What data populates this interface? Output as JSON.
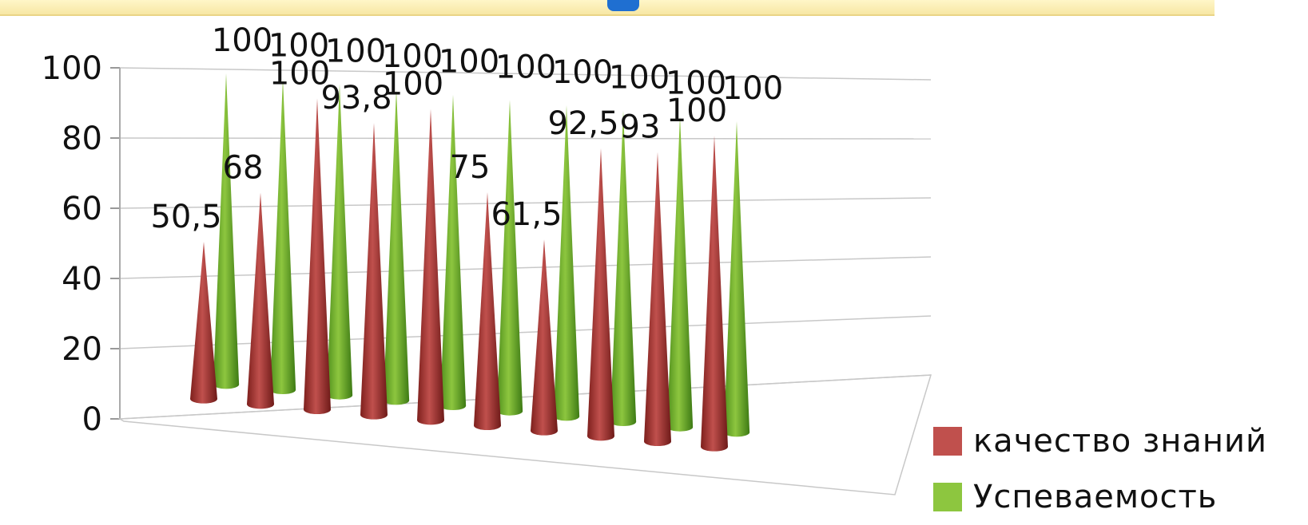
{
  "colors": {
    "series1": "#c0504d",
    "series2": "#8dc63f"
  },
  "chart_data": {
    "type": "bar",
    "ylim": [
      0,
      100
    ],
    "yticks": [
      "0",
      "20",
      "40",
      "60",
      "80",
      "100"
    ],
    "categories": [
      "",
      "",
      "",
      "",
      "",
      "",
      "",
      "",
      "",
      ""
    ],
    "series": [
      {
        "name": "качество знаний",
        "values": [
          50.5,
          68,
          100,
          93.8,
          100,
          75,
          61.5,
          92.5,
          93,
          100
        ]
      },
      {
        "name": "Успеваемость",
        "values": [
          100,
          100,
          100,
          100,
          100,
          100,
          100,
          100,
          100,
          100
        ]
      }
    ],
    "data_labels": [
      {
        "series": 0,
        "index": 0,
        "text": "50,5"
      },
      {
        "series": 0,
        "index": 1,
        "text": "68"
      },
      {
        "series": 0,
        "index": 2,
        "text": "100"
      },
      {
        "series": 0,
        "index": 3,
        "text": "93,8"
      },
      {
        "series": 0,
        "index": 4,
        "text": "100"
      },
      {
        "series": 0,
        "index": 5,
        "text": "75"
      },
      {
        "series": 0,
        "index": 6,
        "text": "61,5"
      },
      {
        "series": 0,
        "index": 7,
        "text": "92,5"
      },
      {
        "series": 0,
        "index": 8,
        "text": "93"
      },
      {
        "series": 0,
        "index": 9,
        "text": "100"
      },
      {
        "series": 1,
        "index": 0,
        "text": "100"
      },
      {
        "series": 1,
        "index": 1,
        "text": "100"
      },
      {
        "series": 1,
        "index": 2,
        "text": "100"
      },
      {
        "series": 1,
        "index": 3,
        "text": "100"
      },
      {
        "series": 1,
        "index": 4,
        "text": "100"
      },
      {
        "series": 1,
        "index": 5,
        "text": "100"
      },
      {
        "series": 1,
        "index": 6,
        "text": "100"
      },
      {
        "series": 1,
        "index": 7,
        "text": "100"
      },
      {
        "series": 1,
        "index": 8,
        "text": "100"
      },
      {
        "series": 1,
        "index": 9,
        "text": "100"
      }
    ],
    "legend_position": "bottom-right",
    "grid": true
  }
}
